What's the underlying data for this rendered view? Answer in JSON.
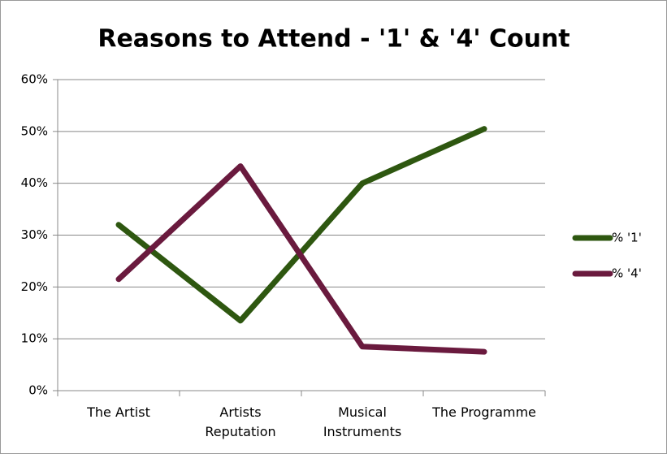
{
  "chart_data": {
    "type": "line",
    "title": "Reasons to Attend - '1' & '4' Count",
    "categories": [
      "The Artist",
      "Artists Reputation",
      "Musical Instruments",
      "The Programme"
    ],
    "series": [
      {
        "name": "% '1'",
        "color": "#2e5710",
        "values": [
          32,
          13.5,
          40,
          50.5
        ]
      },
      {
        "name": "% '4'",
        "color": "#6a1a3e",
        "values": [
          21.5,
          43.3,
          8.5,
          7.5
        ]
      }
    ],
    "ylim": [
      0,
      60
    ],
    "yticks": [
      {
        "value": 0,
        "label": "0%"
      },
      {
        "value": 10,
        "label": "10%"
      },
      {
        "value": 20,
        "label": "20%"
      },
      {
        "value": 30,
        "label": "30%"
      },
      {
        "value": 40,
        "label": "40%"
      },
      {
        "value": 50,
        "label": "50%"
      },
      {
        "value": 60,
        "label": "60%"
      }
    ],
    "grid": true,
    "legend": "right"
  }
}
